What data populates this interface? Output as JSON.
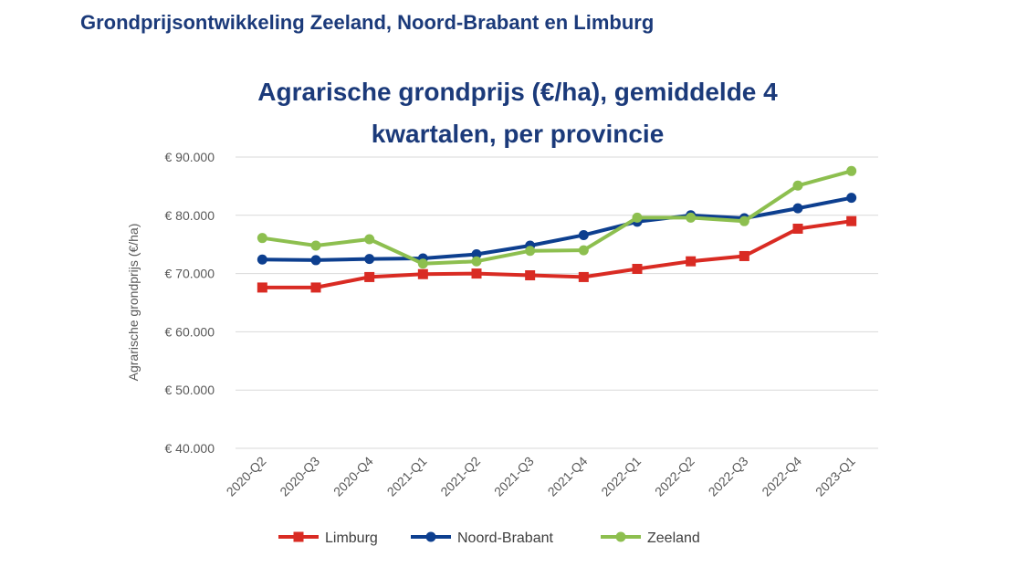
{
  "slide": {
    "title": "Grondprijsontwikkeling Zeeland, Noord-Brabant en Limburg"
  },
  "chart_data": {
    "type": "line",
    "title_lines": [
      "Agrarische grondprijs (€/ha), gemiddelde 4",
      "kwartalen, per provincie"
    ],
    "xlabel": "",
    "ylabel": "Agrarische grondprijs (€/ha)",
    "categories": [
      "2020-Q2",
      "2020-Q3",
      "2020-Q4",
      "2021-Q1",
      "2021-Q2",
      "2021-Q3",
      "2021-Q4",
      "2022-Q1",
      "2022-Q2",
      "2022-Q3",
      "2022-Q4",
      "2023-Q1"
    ],
    "ylim": [
      40000,
      90000
    ],
    "yticks": [
      {
        "value": 40000,
        "label": "€ 40.000"
      },
      {
        "value": 50000,
        "label": "€ 50.000"
      },
      {
        "value": 60000,
        "label": "€ 60.000"
      },
      {
        "value": 70000,
        "label": "€ 70.000"
      },
      {
        "value": 80000,
        "label": "€ 80.000"
      },
      {
        "value": 90000,
        "label": "€ 90.000"
      }
    ],
    "grid": "horizontal",
    "legend_position": "bottom",
    "series": [
      {
        "name": "Limburg",
        "color": "#d92b23",
        "marker": "square",
        "values": [
          67600,
          67600,
          69400,
          69900,
          70000,
          69700,
          69400,
          70800,
          72100,
          73000,
          77700,
          79000
        ]
      },
      {
        "name": "Noord-Brabant",
        "color": "#0d3f8f",
        "marker": "circle",
        "values": [
          72400,
          72300,
          72500,
          72600,
          73300,
          74800,
          76600,
          78900,
          80000,
          79500,
          81200,
          83000
        ]
      },
      {
        "name": "Zeeland",
        "color": "#8dbf4f",
        "marker": "circle",
        "values": [
          76100,
          74800,
          75900,
          71700,
          72100,
          73900,
          74000,
          79600,
          79600,
          79000,
          85100,
          87600
        ]
      }
    ]
  }
}
